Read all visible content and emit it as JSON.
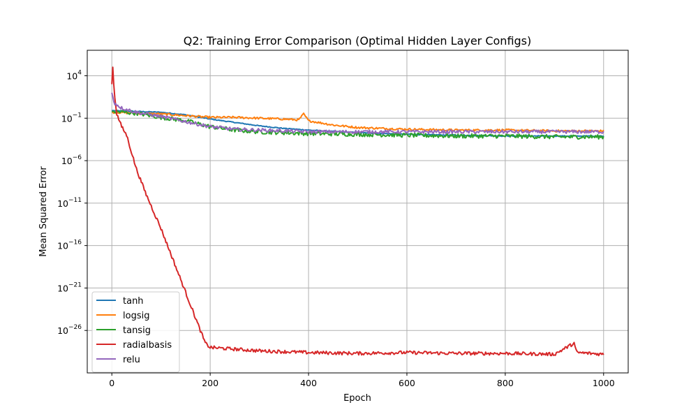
{
  "chart_data": {
    "type": "line",
    "title": "Q2: Training Error Comparison (Optimal Hidden Layer Configs)",
    "xlabel": "Epoch",
    "ylabel": "Mean Squared Error",
    "xlim": [
      -50,
      1050
    ],
    "ylim_log10": [
      -31,
      7
    ],
    "yscale": "log",
    "grid": true,
    "legend_position": "lower-left",
    "x_ticks": [
      0,
      200,
      400,
      600,
      800,
      1000
    ],
    "x_tick_labels": [
      "0",
      "200",
      "400",
      "600",
      "800",
      "1000"
    ],
    "y_ticks_log10": [
      4,
      -1,
      -6,
      -11,
      -16,
      -21,
      -26
    ],
    "y_tick_labels": [
      "10^4",
      "10^-1",
      "10^-6",
      "10^-11",
      "10^-16",
      "10^-21",
      "10^-26"
    ],
    "series": [
      {
        "name": "tanh",
        "color": "#1f77b4",
        "x": [
          0,
          50,
          100,
          150,
          200,
          250,
          300,
          350,
          400,
          500,
          600,
          700,
          800,
          900,
          1000
        ],
        "log10_y": [
          -0.1,
          -0.2,
          -0.3,
          -0.6,
          -1.1,
          -1.5,
          -1.9,
          -2.2,
          -2.4,
          -2.7,
          -2.9,
          -3.0,
          -3.1,
          -3.1,
          -3.1
        ],
        "noise": 0.05
      },
      {
        "name": "logsig",
        "color": "#ff7f0e",
        "x": [
          0,
          50,
          100,
          150,
          200,
          250,
          300,
          350,
          380,
          390,
          400,
          450,
          500,
          600,
          700,
          800,
          900,
          1000
        ],
        "log10_y": [
          -0.3,
          -0.4,
          -0.5,
          -0.7,
          -0.9,
          -0.9,
          -1.0,
          -1.1,
          -1.2,
          -0.5,
          -1.3,
          -1.8,
          -2.1,
          -2.3,
          -2.4,
          -2.4,
          -2.5,
          -2.5
        ],
        "noise": 0.12
      },
      {
        "name": "tansig",
        "color": "#2ca02c",
        "x": [
          0,
          50,
          100,
          150,
          200,
          250,
          300,
          400,
          500,
          600,
          700,
          800,
          900,
          1000
        ],
        "log10_y": [
          -0.2,
          -0.4,
          -0.9,
          -1.3,
          -2.0,
          -2.4,
          -2.6,
          -2.8,
          -2.9,
          -3.0,
          -3.1,
          -3.1,
          -3.2,
          -3.2
        ],
        "noise": 0.25
      },
      {
        "name": "radialbasis",
        "color": "#d62728",
        "x": [
          0,
          2,
          5,
          10,
          20,
          30,
          50,
          70,
          100,
          120,
          140,
          160,
          180,
          190,
          200,
          250,
          300,
          400,
          500,
          600,
          700,
          800,
          900,
          940,
          945,
          1000
        ],
        "log10_y": [
          3,
          5,
          2,
          -0.5,
          -2,
          -3,
          -7,
          -10,
          -14,
          -17,
          -20,
          -23,
          -26,
          -27.5,
          -28,
          -28.2,
          -28.4,
          -28.6,
          -28.7,
          -28.6,
          -28.7,
          -28.7,
          -28.8,
          -27.5,
          -28.6,
          -28.8
        ],
        "noise": 0.2
      },
      {
        "name": "relu",
        "color": "#9467bd",
        "x": [
          0,
          5,
          20,
          50,
          100,
          150,
          200,
          250,
          300,
          400,
          500,
          600,
          700,
          800,
          900,
          1000
        ],
        "log10_y": [
          2,
          0.8,
          0.2,
          -0.3,
          -0.8,
          -1.4,
          -2.0,
          -2.3,
          -2.4,
          -2.6,
          -2.6,
          -2.6,
          -2.6,
          -2.6,
          -2.6,
          -2.6
        ],
        "noise": 0.2
      }
    ]
  }
}
